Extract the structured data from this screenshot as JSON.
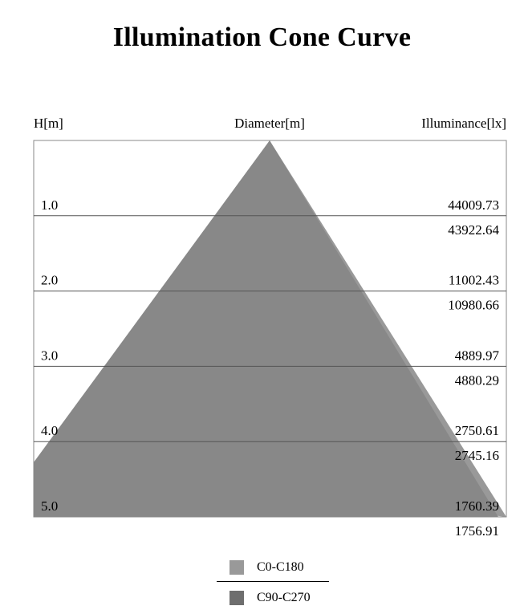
{
  "title": "Illumination Cone Curve",
  "headers": {
    "height": "H[m]",
    "diameter": "Diameter[m]",
    "illuminance": "Illuminance[lx]"
  },
  "chart_data": {
    "type": "area",
    "title": "Illumination Cone Curve",
    "heights": [
      "1.0",
      "2.0",
      "3.0",
      "4.0",
      "5.0"
    ],
    "series": [
      {
        "name": "C0-C180",
        "color": "#999999",
        "illuminance": [
          "44009.73",
          "11002.43",
          "4889.97",
          "2750.61",
          "1760.39"
        ]
      },
      {
        "name": "C90-C270",
        "color": "#6e6e6e",
        "illuminance": [
          "43922.64",
          "10980.66",
          "4880.29",
          "2745.16",
          "1756.91"
        ]
      }
    ],
    "ylim": [
      0,
      5
    ],
    "grid": true,
    "legend_position": "bottom"
  }
}
